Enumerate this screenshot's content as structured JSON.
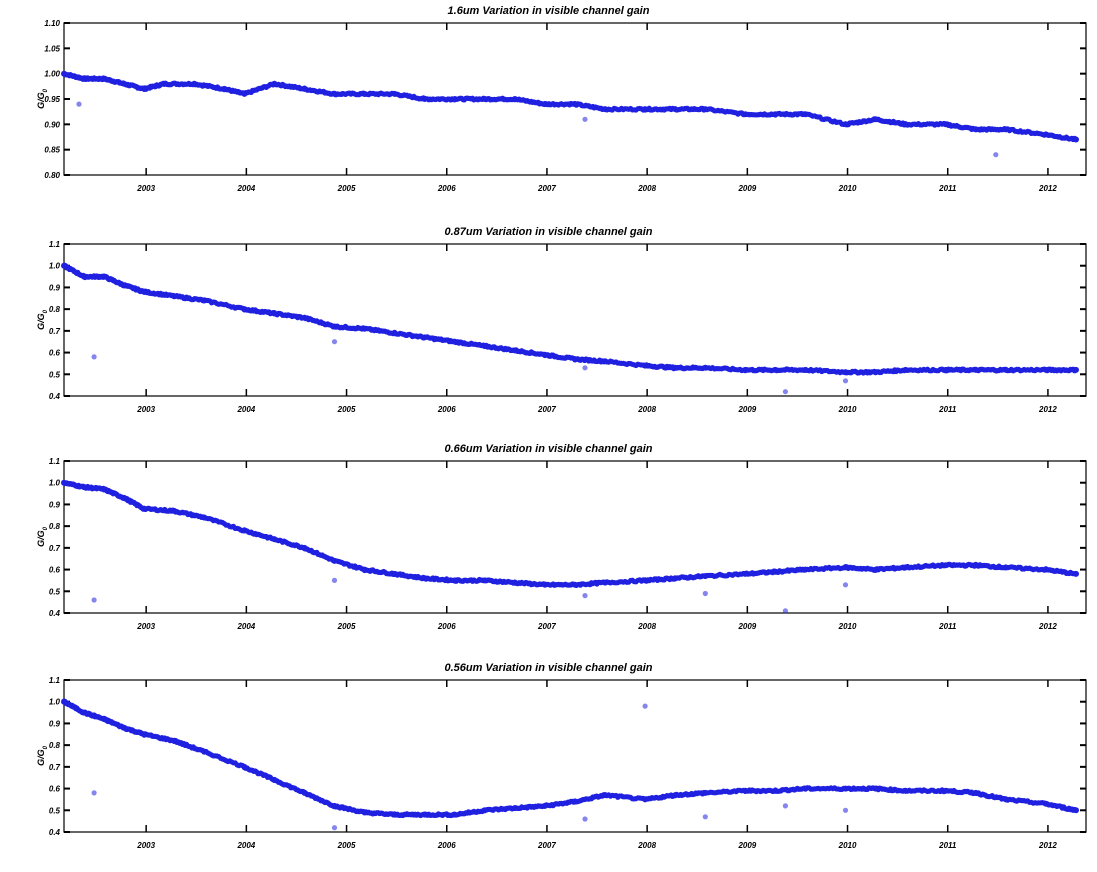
{
  "colors": {
    "marker": "#2020e0",
    "axis": "#000000"
  },
  "chart_data": [
    {
      "type": "scatter",
      "title": "1.6um Variation in visible channel gain",
      "ylabel": "G/G0",
      "ylim": [
        0.8,
        1.1
      ],
      "yticks": [
        "0.80",
        "0.85",
        "0.90",
        "0.95",
        "1.00",
        "1.05",
        "1.10"
      ],
      "ytick_values": [
        0.8,
        0.85,
        0.9,
        0.95,
        1.0,
        1.05,
        1.1
      ],
      "xlim": [
        2002.2,
        2012.4
      ],
      "xticks": [
        "2003",
        "2004",
        "2005",
        "2006",
        "2007",
        "2008",
        "2009",
        "2010",
        "2011",
        "2012"
      ],
      "grid": false,
      "series": [
        {
          "x": [
            2002.2,
            2002.4,
            2002.6,
            2002.8,
            2003.0,
            2003.2,
            2003.5,
            2003.8,
            2004.0,
            2004.3,
            2004.6,
            2004.9,
            2005.2,
            2005.5,
            2005.8,
            2006.1,
            2006.4,
            2006.7,
            2007.0,
            2007.3,
            2007.6,
            2008.0,
            2008.3,
            2008.6,
            2009.0,
            2009.3,
            2009.6,
            2010.0,
            2010.3,
            2010.6,
            2011.0,
            2011.3,
            2011.6,
            2012.0,
            2012.3
          ],
          "y": [
            1.0,
            0.99,
            0.99,
            0.98,
            0.97,
            0.98,
            0.98,
            0.97,
            0.96,
            0.98,
            0.97,
            0.96,
            0.96,
            0.96,
            0.95,
            0.95,
            0.95,
            0.95,
            0.94,
            0.94,
            0.93,
            0.93,
            0.93,
            0.93,
            0.92,
            0.92,
            0.92,
            0.9,
            0.91,
            0.9,
            0.9,
            0.89,
            0.89,
            0.88,
            0.87
          ]
        }
      ],
      "outliers": {
        "x": [
          2002.35,
          2007.4,
          2011.5
        ],
        "y": [
          0.94,
          0.91,
          0.84
        ]
      }
    },
    {
      "type": "scatter",
      "title": "0.87um Variation in visible channel gain",
      "ylabel": "G/G0",
      "ylim": [
        0.4,
        1.1
      ],
      "yticks": [
        "0.4",
        "0.5",
        "0.6",
        "0.7",
        "0.8",
        "0.9",
        "1.0",
        "1.1"
      ],
      "ytick_values": [
        0.4,
        0.5,
        0.6,
        0.7,
        0.8,
        0.9,
        1.0,
        1.1
      ],
      "xlim": [
        2002.2,
        2012.4
      ],
      "xticks": [
        "2003",
        "2004",
        "2005",
        "2006",
        "2007",
        "2008",
        "2009",
        "2010",
        "2011",
        "2012"
      ],
      "grid": false,
      "series": [
        {
          "x": [
            2002.2,
            2002.4,
            2002.6,
            2002.8,
            2003.0,
            2003.3,
            2003.6,
            2004.0,
            2004.3,
            2004.6,
            2004.9,
            2005.2,
            2005.5,
            2005.8,
            2006.1,
            2006.4,
            2006.7,
            2007.0,
            2007.3,
            2007.6,
            2008.0,
            2008.3,
            2008.6,
            2009.0,
            2009.3,
            2009.6,
            2010.0,
            2010.3,
            2010.6,
            2011.0,
            2011.3,
            2011.6,
            2012.0,
            2012.3
          ],
          "y": [
            1.0,
            0.95,
            0.95,
            0.91,
            0.88,
            0.86,
            0.84,
            0.8,
            0.78,
            0.76,
            0.72,
            0.71,
            0.69,
            0.67,
            0.65,
            0.63,
            0.61,
            0.59,
            0.57,
            0.56,
            0.54,
            0.53,
            0.53,
            0.52,
            0.52,
            0.52,
            0.51,
            0.51,
            0.52,
            0.52,
            0.52,
            0.52,
            0.52,
            0.52
          ]
        }
      ],
      "outliers": {
        "x": [
          2002.5,
          2004.9,
          2007.4,
          2009.4,
          2010.0
        ],
        "y": [
          0.58,
          0.65,
          0.53,
          0.42,
          0.47
        ]
      }
    },
    {
      "type": "scatter",
      "title": "0.66um Variation in visible channel gain",
      "ylabel": "G/G0",
      "ylim": [
        0.4,
        1.1
      ],
      "yticks": [
        "0.4",
        "0.5",
        "0.6",
        "0.7",
        "0.8",
        "0.9",
        "1.0",
        "1.1"
      ],
      "ytick_values": [
        0.4,
        0.5,
        0.6,
        0.7,
        0.8,
        0.9,
        1.0,
        1.1
      ],
      "xlim": [
        2002.2,
        2012.4
      ],
      "xticks": [
        "2003",
        "2004",
        "2005",
        "2006",
        "2007",
        "2008",
        "2009",
        "2010",
        "2011",
        "2012"
      ],
      "grid": false,
      "series": [
        {
          "x": [
            2002.2,
            2002.4,
            2002.6,
            2002.8,
            2003.0,
            2003.3,
            2003.6,
            2004.0,
            2004.3,
            2004.6,
            2004.9,
            2005.2,
            2005.5,
            2005.8,
            2006.1,
            2006.4,
            2006.7,
            2007.0,
            2007.3,
            2007.6,
            2008.0,
            2008.3,
            2008.6,
            2009.0,
            2009.3,
            2009.6,
            2010.0,
            2010.3,
            2010.6,
            2011.0,
            2011.3,
            2011.6,
            2012.0,
            2012.3
          ],
          "y": [
            1.0,
            0.98,
            0.97,
            0.93,
            0.88,
            0.87,
            0.84,
            0.78,
            0.74,
            0.7,
            0.64,
            0.6,
            0.58,
            0.56,
            0.55,
            0.55,
            0.54,
            0.53,
            0.53,
            0.54,
            0.55,
            0.56,
            0.57,
            0.58,
            0.59,
            0.6,
            0.61,
            0.6,
            0.61,
            0.62,
            0.62,
            0.61,
            0.6,
            0.58
          ]
        }
      ],
      "outliers": {
        "x": [
          2002.5,
          2004.9,
          2007.4,
          2008.6,
          2009.4,
          2010.0
        ],
        "y": [
          0.46,
          0.55,
          0.48,
          0.49,
          0.41,
          0.53
        ]
      }
    },
    {
      "type": "scatter",
      "title": "0.56um Variation in visible channel gain",
      "ylabel": "G/G0",
      "ylim": [
        0.4,
        1.1
      ],
      "yticks": [
        "0.4",
        "0.5",
        "0.6",
        "0.7",
        "0.8",
        "0.9",
        "1.0",
        "1.1"
      ],
      "ytick_values": [
        0.4,
        0.5,
        0.6,
        0.7,
        0.8,
        0.9,
        1.0,
        1.1
      ],
      "xlim": [
        2002.2,
        2012.4
      ],
      "xticks": [
        "2003",
        "2004",
        "2005",
        "2006",
        "2007",
        "2008",
        "2009",
        "2010",
        "2011",
        "2012"
      ],
      "grid": false,
      "series": [
        {
          "x": [
            2002.2,
            2002.4,
            2002.6,
            2002.8,
            2003.0,
            2003.3,
            2003.6,
            2004.0,
            2004.3,
            2004.6,
            2004.9,
            2005.2,
            2005.5,
            2005.8,
            2006.1,
            2006.4,
            2006.7,
            2007.0,
            2007.3,
            2007.6,
            2008.0,
            2008.3,
            2008.6,
            2009.0,
            2009.3,
            2009.6,
            2010.0,
            2010.3,
            2010.6,
            2011.0,
            2011.3,
            2011.6,
            2012.0,
            2012.3
          ],
          "y": [
            1.0,
            0.95,
            0.92,
            0.88,
            0.85,
            0.82,
            0.77,
            0.7,
            0.64,
            0.58,
            0.52,
            0.49,
            0.48,
            0.48,
            0.48,
            0.5,
            0.51,
            0.52,
            0.54,
            0.57,
            0.55,
            0.57,
            0.58,
            0.59,
            0.59,
            0.6,
            0.6,
            0.6,
            0.59,
            0.59,
            0.58,
            0.55,
            0.53,
            0.5
          ]
        }
      ],
      "outliers": {
        "x": [
          2002.5,
          2004.9,
          2007.4,
          2008.0,
          2008.6,
          2009.4,
          2010.0
        ],
        "y": [
          0.58,
          0.42,
          0.46,
          0.98,
          0.47,
          0.52,
          0.5
        ]
      }
    }
  ]
}
